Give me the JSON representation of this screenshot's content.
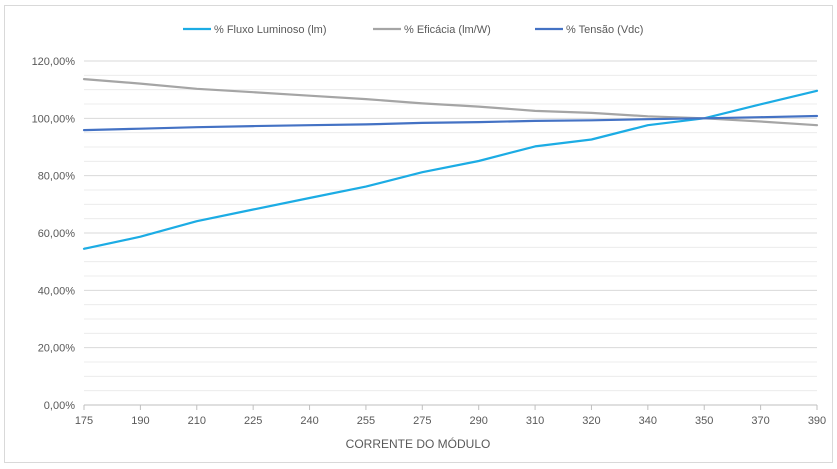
{
  "chart_data": {
    "type": "line",
    "title": "",
    "xlabel": "CORRENTE DO MÓDULO",
    "ylabel": "",
    "categories": [
      "175",
      "190",
      "210",
      "225",
      "240",
      "255",
      "275",
      "290",
      "310",
      "320",
      "340",
      "350",
      "370",
      "390"
    ],
    "ylim": [
      0,
      1.2
    ],
    "yticks": [
      0,
      0.2,
      0.4,
      0.6,
      0.8,
      1.0,
      1.2
    ],
    "ytick_labels": [
      "0,00%",
      "20,00%",
      "40,00%",
      "60,00%",
      "80,00%",
      "100,00%",
      "120,00%"
    ],
    "y_format": "percent",
    "grid": true,
    "minor_grid": true,
    "legend_position": "top",
    "series": [
      {
        "name": "% Fluxo Luminoso (lm)",
        "color": "#1cace4",
        "values": [
          0.545,
          0.587,
          0.641,
          0.682,
          0.722,
          0.762,
          0.812,
          0.851,
          0.902,
          0.926,
          0.976,
          1.0,
          1.049,
          1.096
        ]
      },
      {
        "name": "% Eficácia (lm/W)",
        "color": "#a5a5a5",
        "values": [
          1.137,
          1.121,
          1.103,
          1.091,
          1.079,
          1.067,
          1.052,
          1.041,
          1.026,
          1.019,
          1.007,
          1.0,
          0.989,
          0.976
        ]
      },
      {
        "name": "% Tensão (Vdc)",
        "color": "#4472c4",
        "values": [
          0.959,
          0.964,
          0.969,
          0.973,
          0.976,
          0.979,
          0.984,
          0.987,
          0.991,
          0.993,
          0.997,
          1.0,
          1.004,
          1.008
        ]
      }
    ]
  }
}
